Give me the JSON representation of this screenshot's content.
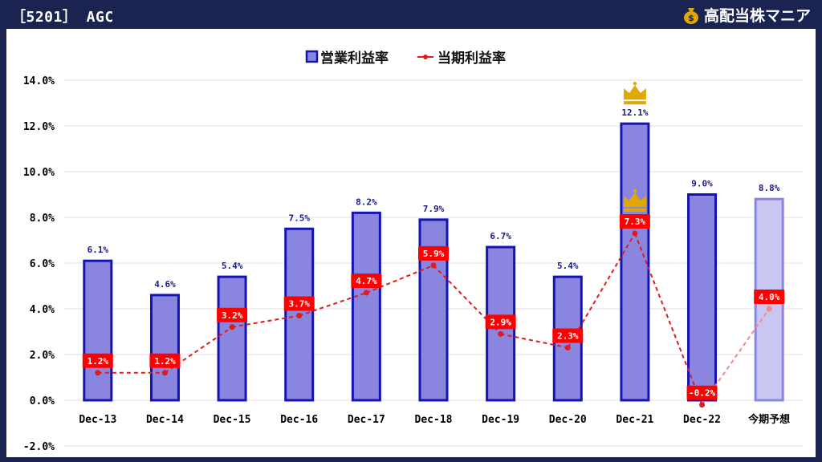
{
  "header": {
    "title": "［5201］ AGC",
    "brand": "高配当株マニア",
    "brand_icon": "money-bag-icon"
  },
  "colors": {
    "bar_fill": "#8a86e0",
    "bar_stroke": "#1414b4",
    "forecast_fill": "#c9c6f2",
    "forecast_stroke": "#8a86e0",
    "line": "#e01b1b",
    "line_forecast": "#f08a8a",
    "label_box": "#ff0000",
    "crown": "#e0a800"
  },
  "chart_data": {
    "type": "bar",
    "categories": [
      "Dec-13",
      "Dec-14",
      "Dec-15",
      "Dec-16",
      "Dec-17",
      "Dec-18",
      "Dec-19",
      "Dec-20",
      "Dec-21",
      "Dec-22",
      "今期予想"
    ],
    "series": [
      {
        "name": "営業利益率",
        "type": "bar",
        "values": [
          6.1,
          4.6,
          5.4,
          7.5,
          8.2,
          7.9,
          6.7,
          5.4,
          12.1,
          9.0,
          8.8
        ],
        "labels": [
          "6.1%",
          "4.6%",
          "5.4%",
          "7.5%",
          "8.2%",
          "7.9%",
          "6.7%",
          "5.4%",
          "12.1%",
          "9.0%",
          "8.8%"
        ]
      },
      {
        "name": "当期利益率",
        "type": "line",
        "values": [
          1.2,
          1.2,
          3.2,
          3.7,
          4.7,
          5.9,
          2.9,
          2.3,
          7.3,
          -0.2,
          4.0
        ],
        "labels": [
          "1.2%",
          "1.2%",
          "3.2%",
          "3.7%",
          "4.7%",
          "5.9%",
          "2.9%",
          "2.3%",
          "7.3%",
          "-0.2%",
          "4.0%"
        ]
      }
    ],
    "forecast_category": "今期予想",
    "highlight": {
      "category": "Dec-21",
      "marker": "crown-icon"
    },
    "ylim": [
      -2.0,
      14.0
    ],
    "yticks": [
      -2.0,
      0.0,
      2.0,
      4.0,
      6.0,
      8.0,
      10.0,
      12.0,
      14.0
    ],
    "ytick_labels": [
      "-2.0%",
      "0.0%",
      "2.0%",
      "4.0%",
      "6.0%",
      "8.0%",
      "10.0%",
      "12.0%",
      "14.0%"
    ],
    "legend_position": "top",
    "grid": true
  }
}
